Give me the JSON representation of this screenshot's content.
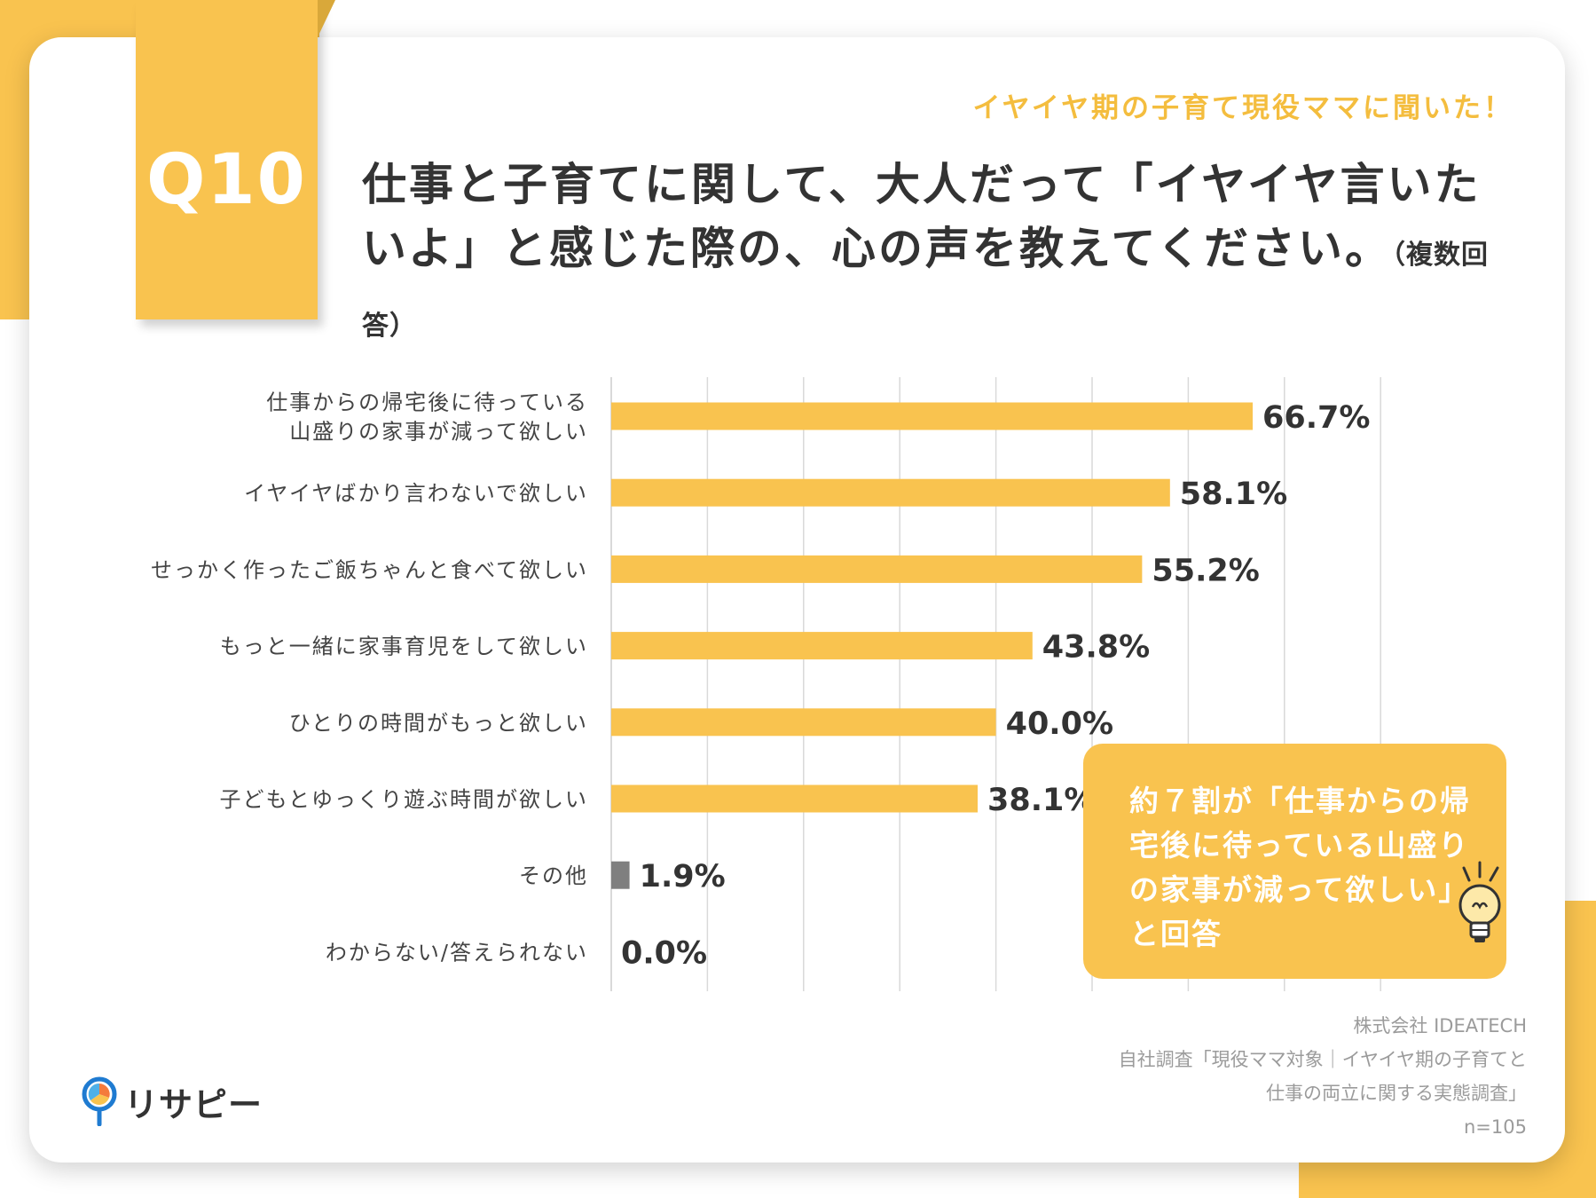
{
  "question_number": "Q10",
  "subtitle": "イヤイヤ期の子育て現役ママに聞いた！",
  "question": {
    "line1": "仕事と子育てに関して、大人だって「イヤイヤ言いた",
    "line2": "いよ」と感じた際の、心の声を教えてください。",
    "note": "（複数回答）"
  },
  "chart_data": {
    "type": "bar",
    "orientation": "horizontal",
    "categories": [
      [
        "仕事からの帰宅後に待っている",
        "山盛りの家事が減って欲しい"
      ],
      [
        "イヤイヤばかり言わないで欲しい"
      ],
      [
        "せっかく作ったご飯ちゃんと食べて欲しい"
      ],
      [
        "もっと一緒に家事育児をして欲しい"
      ],
      [
        "ひとりの時間がもっと欲しい"
      ],
      [
        "子どもとゆっくり遊ぶ時間が欲しい"
      ],
      [
        "その他"
      ],
      [
        "わからない/答えられない"
      ]
    ],
    "values": [
      66.7,
      58.1,
      55.2,
      43.8,
      40.0,
      38.1,
      1.9,
      0.0
    ],
    "labels": [
      "66.7%",
      "58.1%",
      "55.2%",
      "43.8%",
      "40.0%",
      "38.1%",
      "1.9%",
      "0.0%"
    ],
    "bar_colors": [
      "#f9c34f",
      "#f9c34f",
      "#f9c34f",
      "#f9c34f",
      "#f9c34f",
      "#f9c34f",
      "#7f7f7f",
      "#7f7f7f"
    ],
    "xlim": [
      0,
      80
    ],
    "grid": true,
    "unit": "%"
  },
  "callout": {
    "lines": [
      "約７割が「仕事からの帰",
      "宅後に待っている山盛り",
      "の家事が減って欲しい」",
      "と回答"
    ]
  },
  "source": {
    "company": "株式会社 IDEATECH",
    "survey_line1": "自社調査「現役ママ対象｜イヤイヤ期の子育てと",
    "survey_line2": "仕事の両立に関する実態調査」",
    "n": "n=105"
  },
  "logo": {
    "text": "リサピー",
    "icon": "map-pin-pie-icon"
  },
  "colors": {
    "accent": "#f9c34f",
    "subtitle": "#f4bd3e",
    "text": "#333333",
    "muted": "#9b9b9b",
    "other_bar": "#7f7f7f",
    "grid": "#d9d9d9"
  }
}
